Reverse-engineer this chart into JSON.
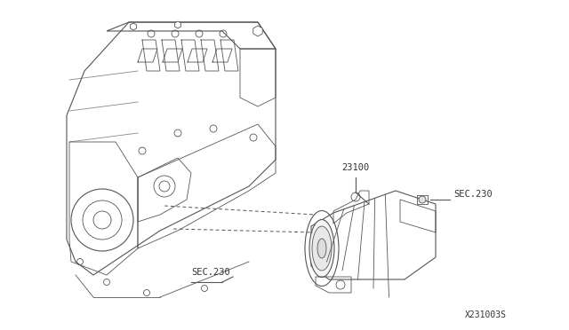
{
  "background_color": "#ffffff",
  "diagram_code": "X231003S",
  "part_number_23100": "23100",
  "sec230_label_1": "SEC.230",
  "sec230_label_2": "SEC.230",
  "line_color": "#555555",
  "text_color": "#333333",
  "annotation_color": "#444444"
}
